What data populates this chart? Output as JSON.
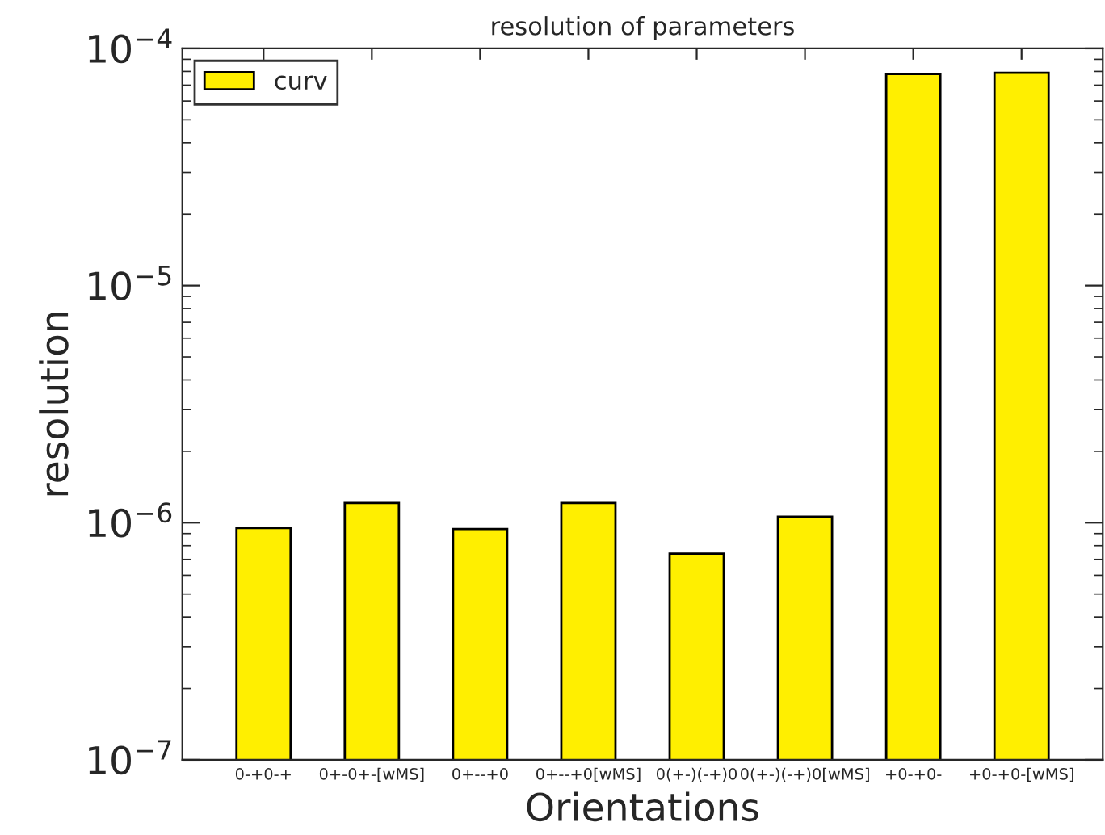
{
  "chart_data": {
    "type": "bar",
    "title": "resolution of parameters",
    "xlabel": "Orientations",
    "ylabel": "resolution",
    "categories": [
      "0-+0-+",
      "0+-0+-[wMS]",
      "0+--+0",
      "0+--+0[wMS]",
      "0(+-)(-+)0",
      "0(+-)(-+)0[wMS]",
      "+0-+0-",
      "+0-+0-[wMS]"
    ],
    "series": [
      {
        "name": "curv",
        "color": "#ffef00",
        "values": [
          9.5e-07,
          1.21e-06,
          9.4e-07,
          1.21e-06,
          7.4e-07,
          1.06e-06,
          7.8e-05,
          7.9e-05
        ]
      }
    ],
    "log": "y",
    "ylim": [
      1e-07,
      0.0001
    ],
    "yticks": [
      {
        "value": 1e-07,
        "label": "10$^{−7}$"
      },
      {
        "value": 1e-06,
        "label": "10$^{−6}$"
      },
      {
        "value": 1e-05,
        "label": "10$^{−5}$"
      },
      {
        "value": 0.0001,
        "label": "10$^{−4}$"
      }
    ],
    "legend": "top left",
    "grid": false
  }
}
